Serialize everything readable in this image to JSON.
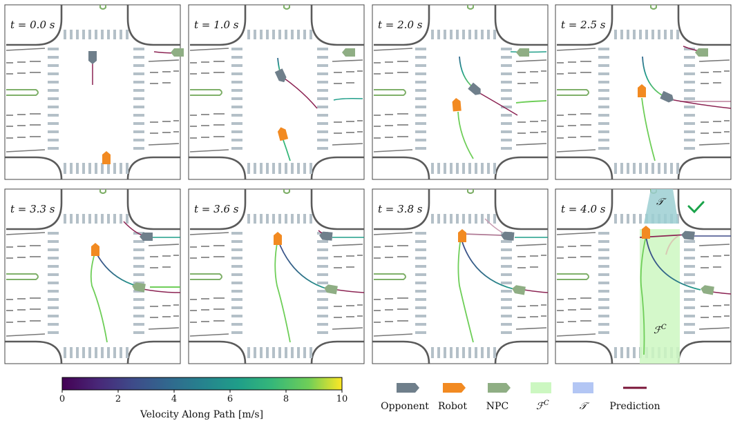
{
  "panels": [
    {
      "label": "t = 0.0 s"
    },
    {
      "label": "t = 1.0 s"
    },
    {
      "label": "t = 2.0 s"
    },
    {
      "label": "t = 2.5 s"
    },
    {
      "label": "t = 3.3 s"
    },
    {
      "label": "t = 3.6 s"
    },
    {
      "label": "t = 3.8 s"
    },
    {
      "label": "t = 4.0 s",
      "annotations": {
        "target_set": "𝒯",
        "feasible_set": "ℱ",
        "feasible_sup": "C",
        "success_icon": "check-icon"
      }
    }
  ],
  "colorbar": {
    "label": "Velocity Along Path [m/s]",
    "ticks": [
      "0",
      "2",
      "4",
      "6",
      "8",
      "10"
    ],
    "min": 0,
    "max": 10,
    "colormap": "viridis"
  },
  "legend": {
    "items": [
      {
        "label": "Opponent",
        "color": "#6f7f8b",
        "icon": "arrow-vehicle"
      },
      {
        "label": "Robot",
        "color": "#f28a21",
        "icon": "arrow-vehicle"
      },
      {
        "label": "NPC",
        "color": "#8fae84",
        "icon": "arrow-vehicle"
      },
      {
        "label": "ℱ",
        "sup": "C",
        "color": "#ccf7c1",
        "icon": "patch"
      },
      {
        "label": "𝒯",
        "color": "#b3c6f4",
        "icon": "patch"
      },
      {
        "label": "Prediction",
        "color": "#7a1538",
        "icon": "line"
      }
    ]
  },
  "colors": {
    "road_edge": "#555555",
    "lane": "#777777",
    "crosswalk": "#b4c0c8",
    "npc_path": "#7fb069",
    "prediction": "#8b2252",
    "feasible": "#ccf7c1",
    "target": "#9ccfd2",
    "check": "#1aa34a"
  }
}
